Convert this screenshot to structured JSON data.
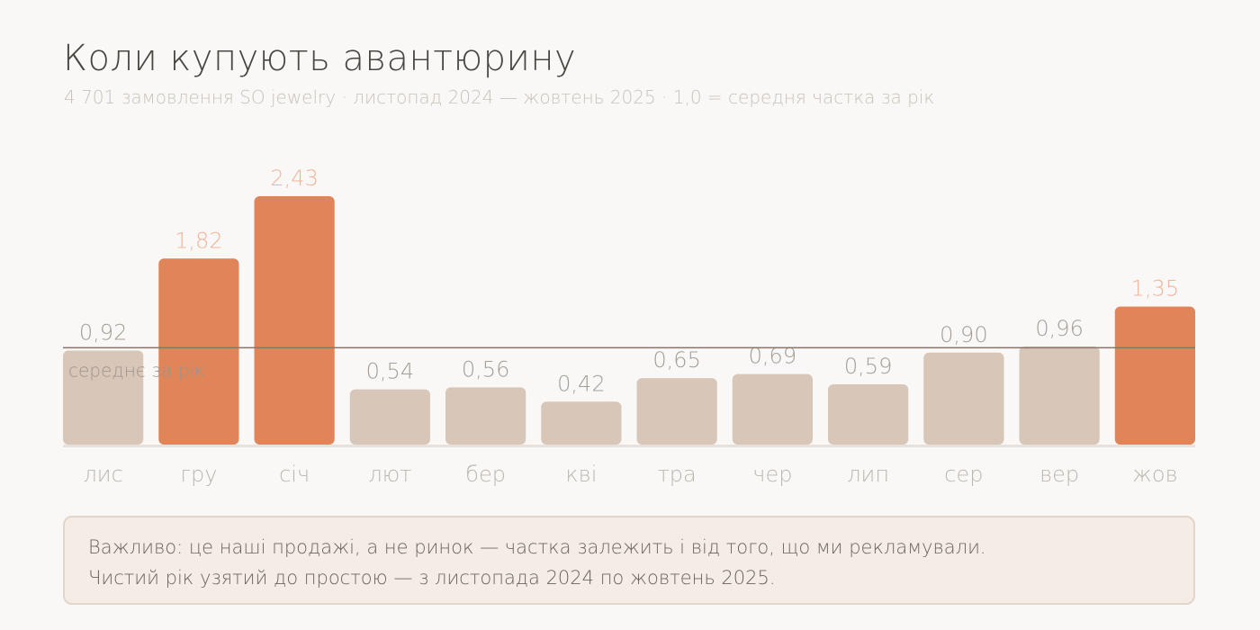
{
  "chart_data": {
    "type": "bar",
    "title": "Коли купують авантюрину",
    "subtitle": "4 701 замовлення SO jewelry · листопад 2024 — жовтень 2025 · 1,0 = середня частка за рік",
    "categories": [
      "лис",
      "гру",
      "січ",
      "лют",
      "бер",
      "кві",
      "тра",
      "чер",
      "лип",
      "сер",
      "вер",
      "жов"
    ],
    "values": [
      0.92,
      1.82,
      2.43,
      0.54,
      0.56,
      0.42,
      0.65,
      0.69,
      0.59,
      0.9,
      0.96,
      1.35
    ],
    "value_labels": [
      "0,92",
      "1,82",
      "2,43",
      "0,54",
      "0,56",
      "0,42",
      "0,65",
      "0,69",
      "0,59",
      "0,90",
      "0,96",
      "1,35"
    ],
    "highlighted": [
      false,
      true,
      true,
      false,
      false,
      false,
      false,
      false,
      false,
      false,
      false,
      true
    ],
    "reference_line": {
      "value": 1.0,
      "label": "середнє за рік"
    },
    "ylim": [
      0,
      2.43
    ],
    "grid": false,
    "colors": {
      "highlight": "#e0855a",
      "normal": "#d8c7b9",
      "highlight_label": "#f0b49a",
      "normal_label": "#a59e98",
      "reference_line": "#8a7468",
      "baseline": "#e8e0da",
      "tick_label": "#bdb6b0"
    }
  },
  "note": {
    "line1": "Важливо: це наші продажі, а не ринок — частка залежить і від того, що ми рекламували.",
    "line2": "Чистий рік узятий до простою — з листопада 2024 по жовтень 2025."
  }
}
